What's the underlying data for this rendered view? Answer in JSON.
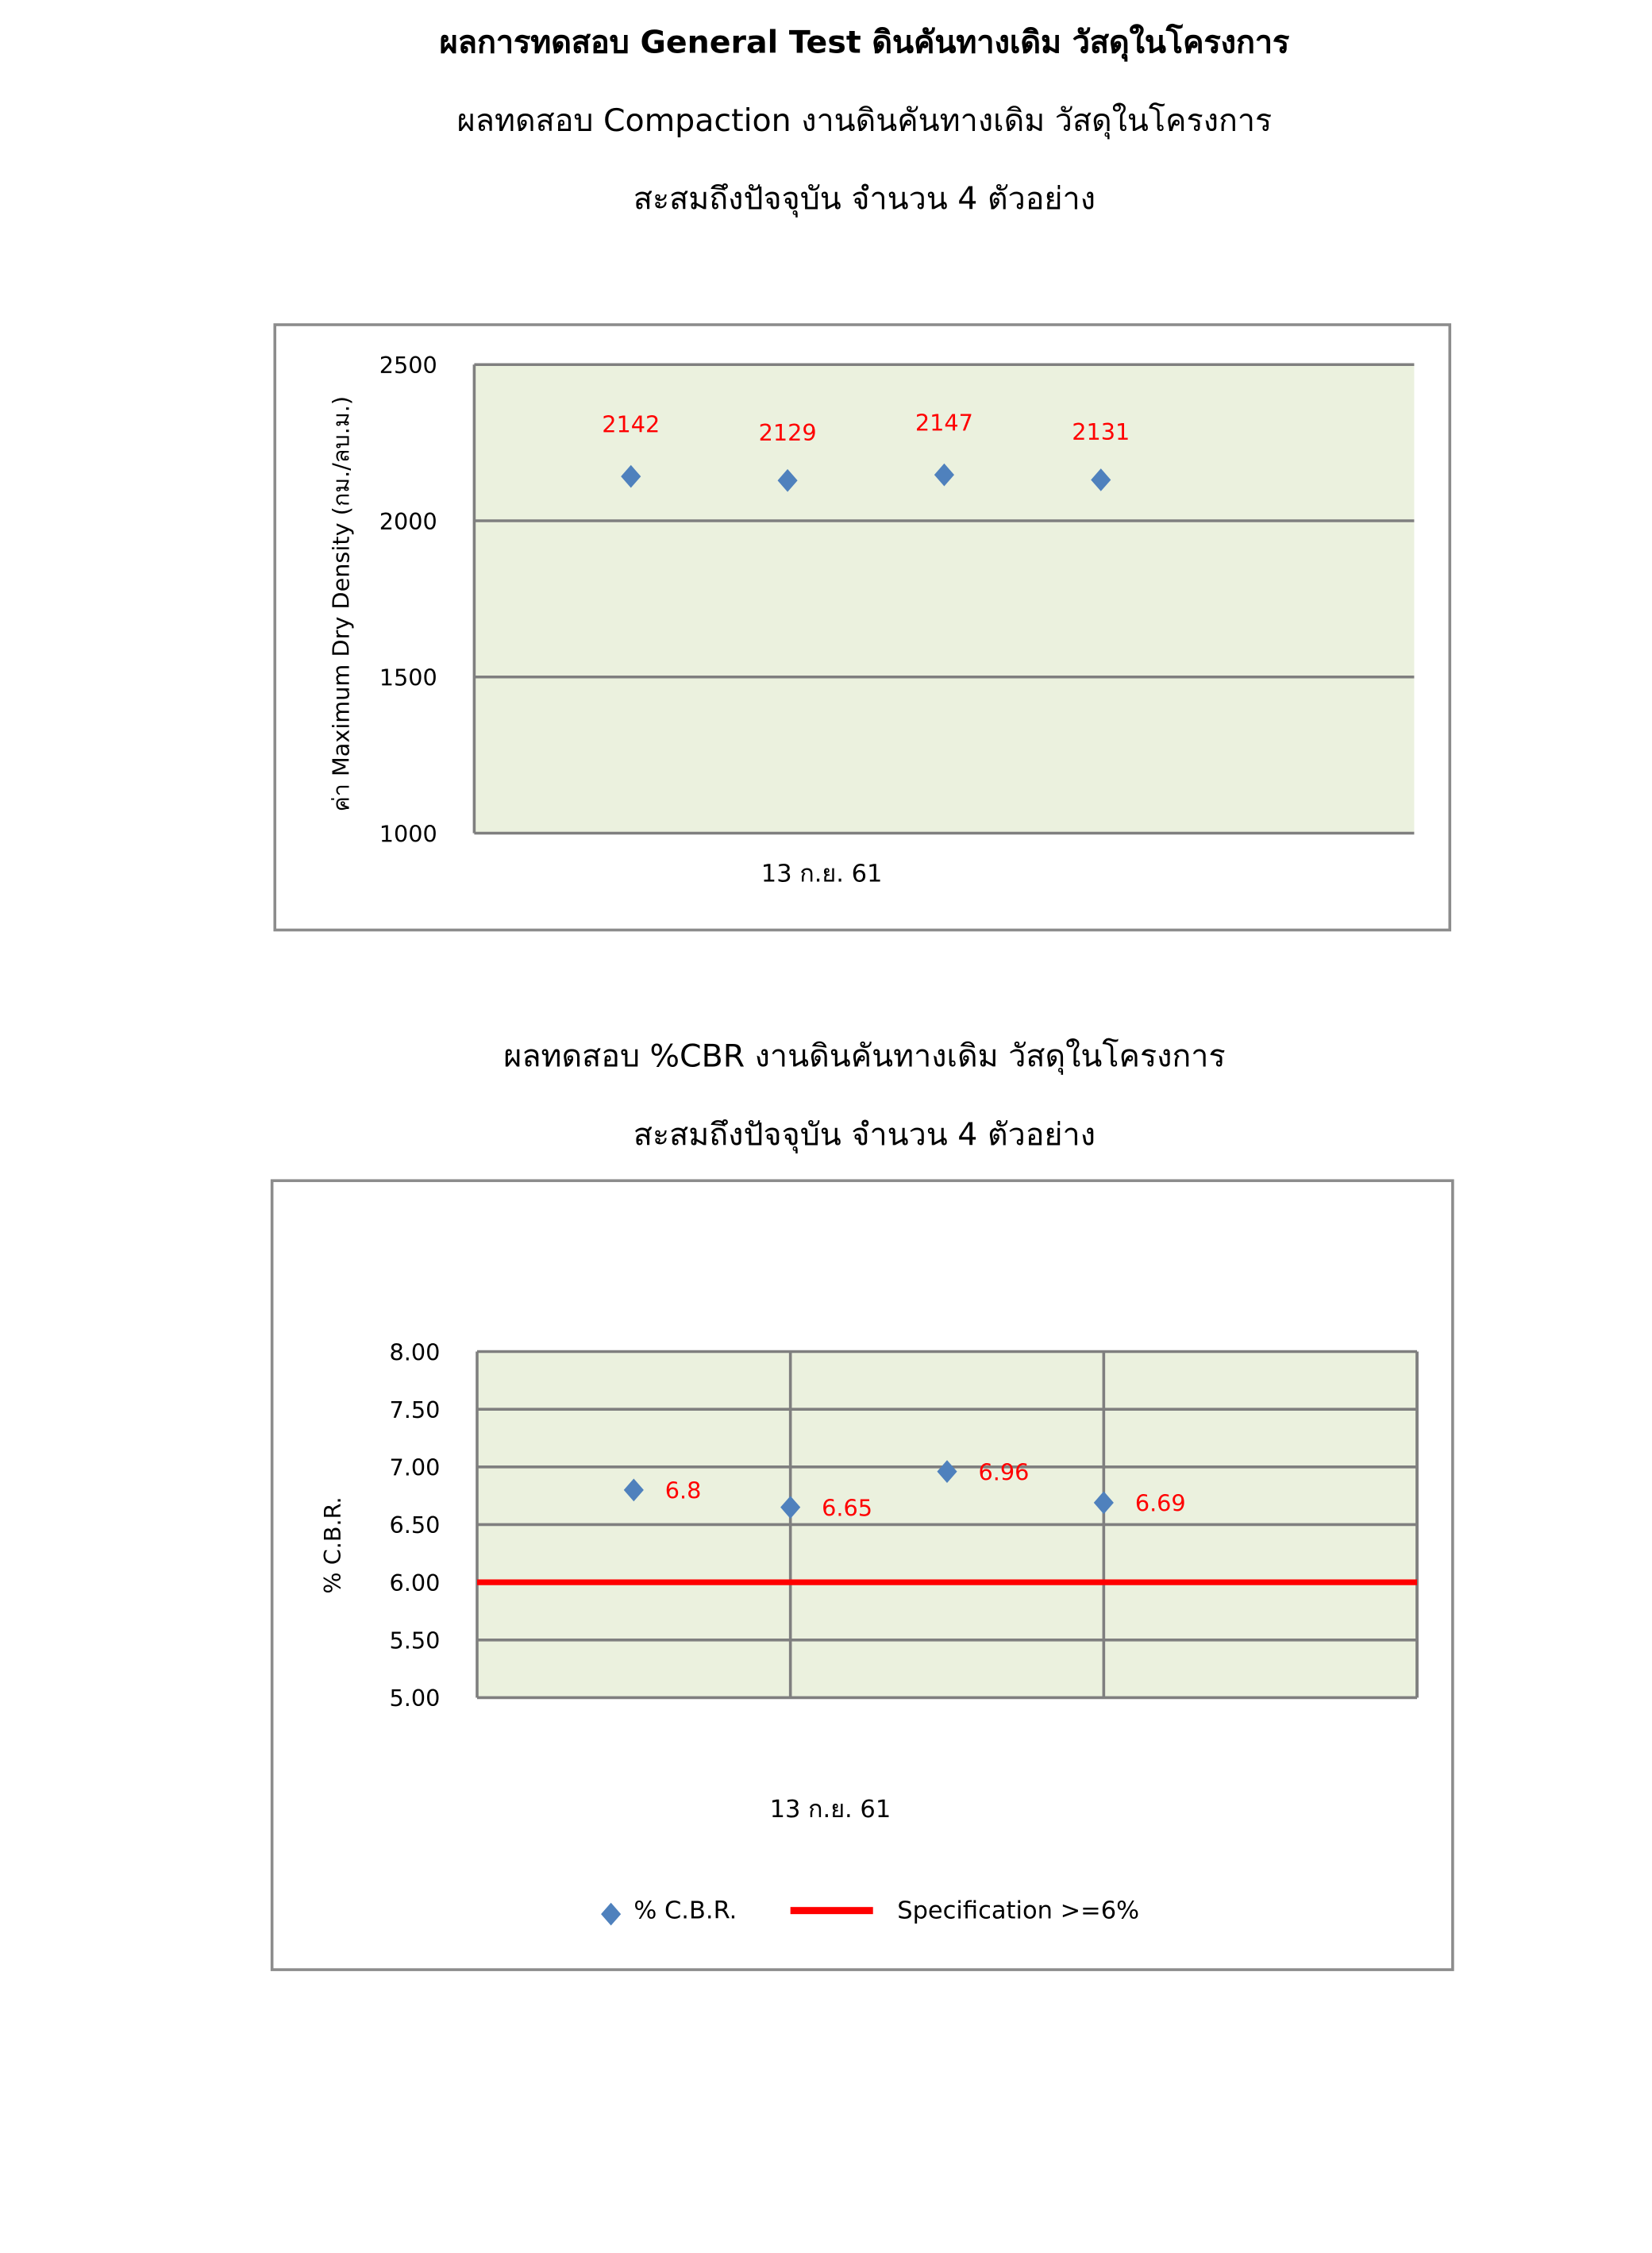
{
  "headings": {
    "main_title": "ผลการทดสอบ General Test ดินคันทางเดิม วัสดุในโครงการ",
    "compaction_title": "ผลทดสอบ Compaction งานดินคันทางเดิม วัสดุในโครงการ",
    "compaction_subtitle": "สะสมถึงปัจจุบัน จำนวน 4 ตัวอย่าง",
    "cbr_title": "ผลทดสอบ %CBR งานดินคันทางเดิม วัสดุในโครงการ",
    "cbr_subtitle": "สะสมถึงปัจจุบัน จำนวน 4 ตัวอย่าง"
  },
  "chart_data": [
    {
      "type": "scatter",
      "title": "",
      "xlabel": "13 ก.ย. 61",
      "ylabel": "ค่า Maximum Dry Density (กม./ลบ.ม.)",
      "ylim": [
        1000,
        2500
      ],
      "yticks": [
        "2500",
        "2000",
        "1500",
        "1000"
      ],
      "grid": "horizontal",
      "values": [
        2142,
        2129,
        2147,
        2131
      ],
      "data_labels": [
        "2142",
        "2129",
        "2147",
        "2131"
      ],
      "marker_color": "#4f81bd",
      "label_color": "#ff0000",
      "plot_bg": "#ebf1de"
    },
    {
      "type": "scatter",
      "title": "",
      "xlabel": "13 ก.ย. 61",
      "ylabel": "% C.B.R.",
      "ylim": [
        5.0,
        8.0
      ],
      "yticks": [
        "8.00",
        "7.50",
        "7.00",
        "6.50",
        "6.00",
        "5.50",
        "5.00"
      ],
      "grid": "both",
      "legend": "bottom",
      "series": [
        {
          "name": "% C.B.R.",
          "values": [
            6.8,
            6.65,
            6.96,
            6.69
          ],
          "data_labels": [
            "6.8",
            "6.65",
            "6.96",
            "6.69"
          ],
          "color": "#4f81bd"
        },
        {
          "name": "Specification >=6%",
          "type": "line",
          "value": 6,
          "color": "#ff0000"
        }
      ],
      "label_color": "#ff0000",
      "plot_bg": "#ebf1de"
    }
  ]
}
